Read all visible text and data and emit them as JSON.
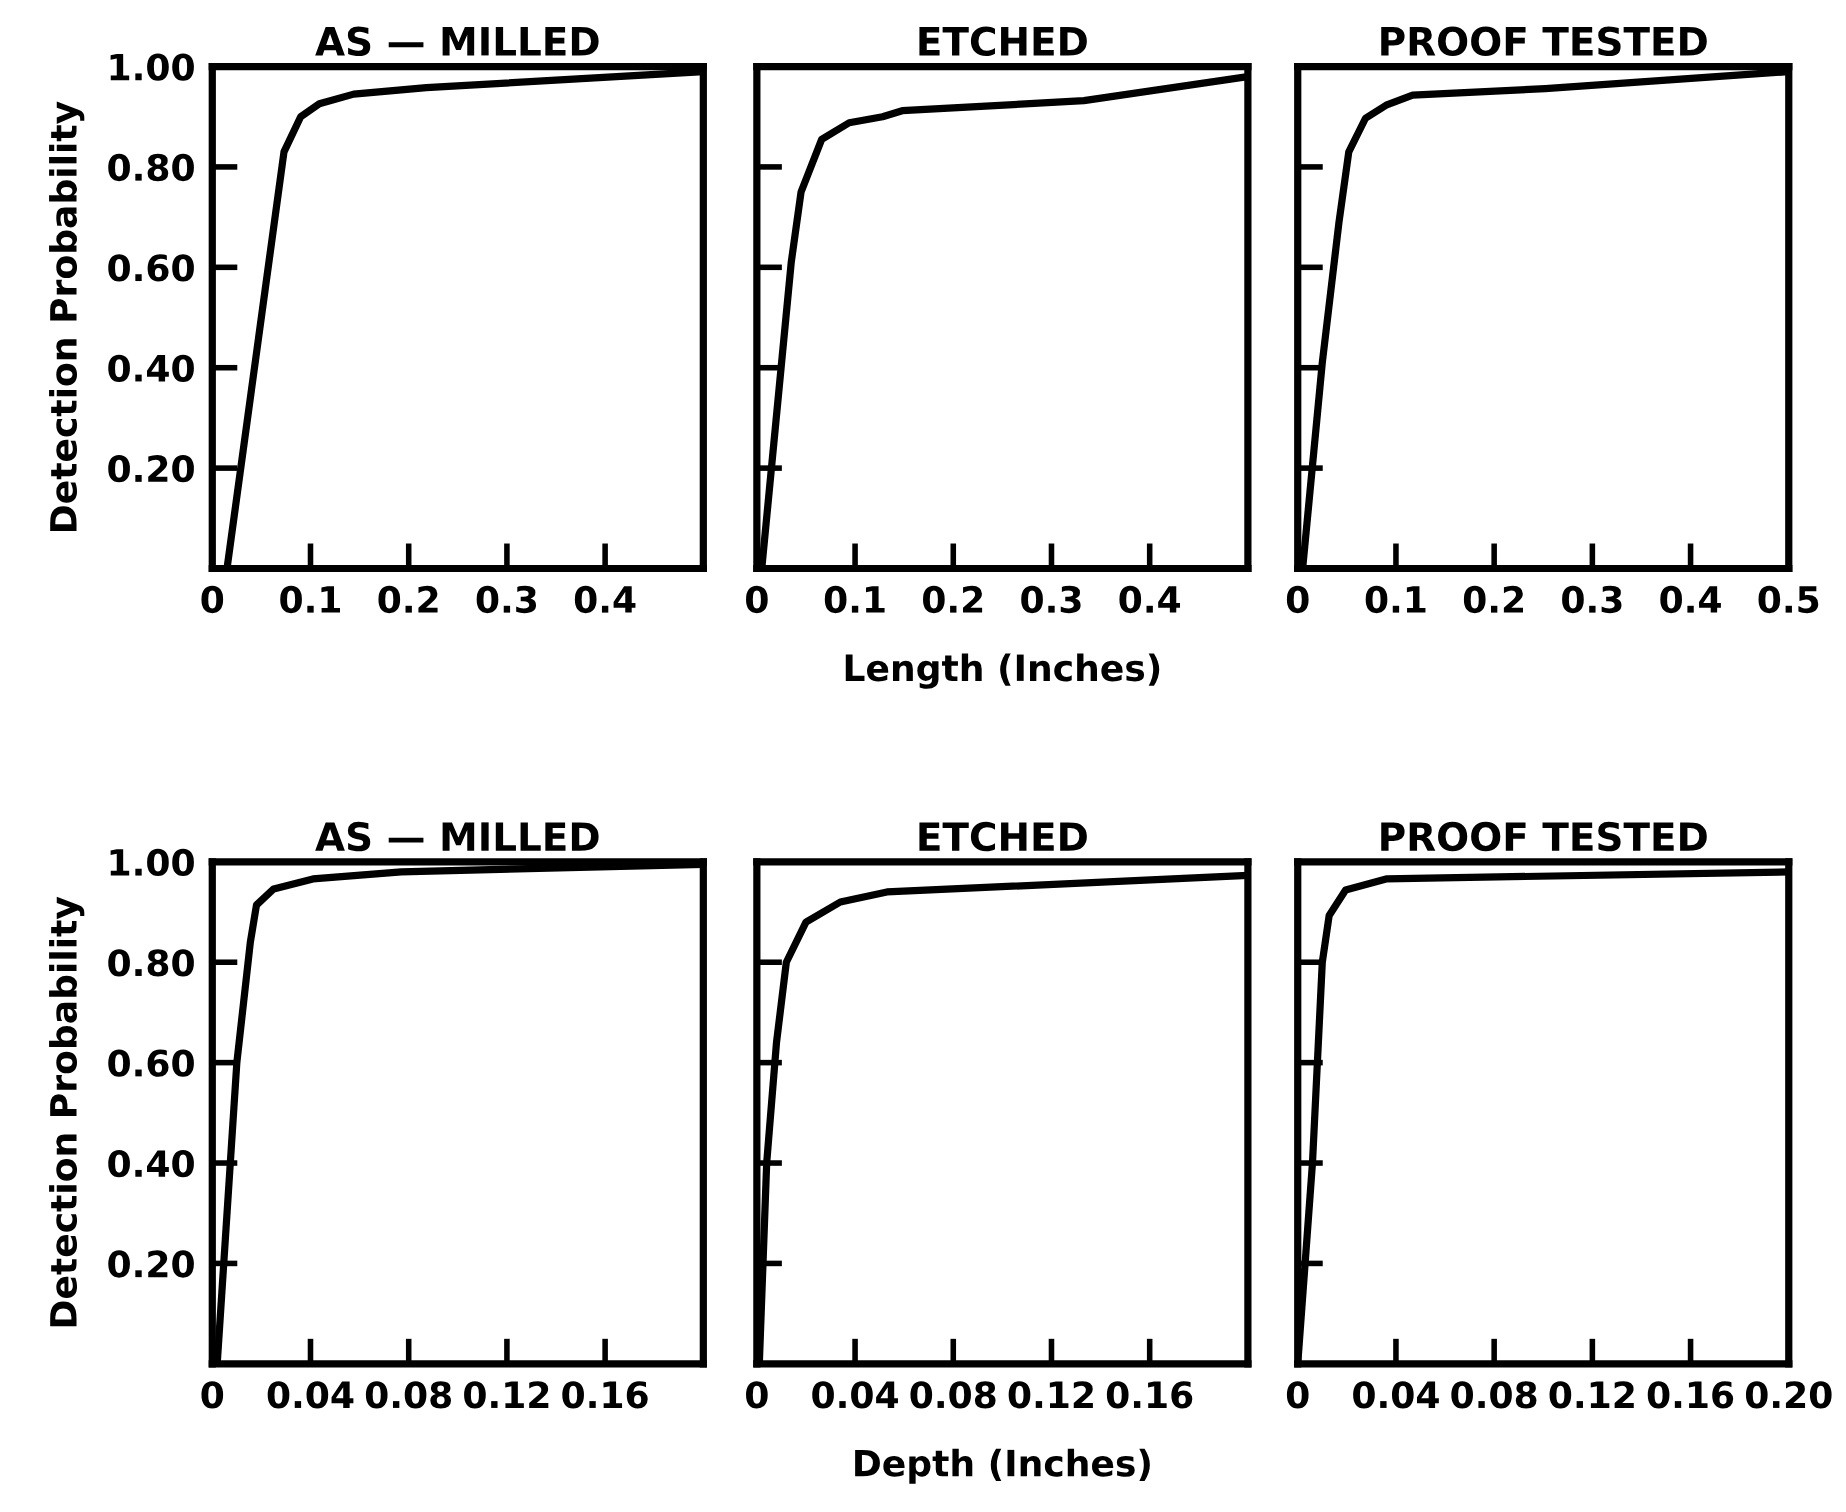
{
  "chart_data": [
    {
      "type": "line",
      "title": "AS — MILLED",
      "ylabel": "Detection Probability",
      "xlim": [
        0,
        0.5
      ],
      "ylim": [
        0,
        1
      ],
      "xticks": [
        0,
        0.1,
        0.2,
        0.3,
        0.4
      ],
      "yticks": [
        {
          "value": 0.2,
          "label": "0.20"
        },
        {
          "value": 0.4,
          "label": "0.40"
        },
        {
          "value": 0.6,
          "label": "0.60"
        },
        {
          "value": 0.8,
          "label": "0.80"
        },
        {
          "value": 1.0,
          "label": "1.00"
        }
      ],
      "grid": false,
      "legend": false,
      "series": [
        {
          "color": "#000000",
          "x": [
            0.015,
            0.073,
            0.09,
            0.109,
            0.144,
            0.218,
            0.5
          ],
          "values": [
            0,
            0.83,
            0.9,
            0.926,
            0.945,
            0.958,
            0.99
          ]
        }
      ]
    },
    {
      "type": "line",
      "title": "ETCHED",
      "xlabel": "Length (Inches)",
      "xlim": [
        0,
        0.5
      ],
      "ylim": [
        0,
        1
      ],
      "xticks": [
        0,
        0.1,
        0.2,
        0.3,
        0.4
      ],
      "yticks": [
        0.2,
        0.4,
        0.6,
        0.8,
        1.0
      ],
      "tick_labels": "x",
      "grid": false,
      "legend": false,
      "series": [
        {
          "color": "#000000",
          "x": [
            0.005,
            0.035,
            0.045,
            0.066,
            0.094,
            0.128,
            0.148,
            0.333,
            0.5
          ],
          "values": [
            0,
            0.61,
            0.75,
            0.855,
            0.888,
            0.9,
            0.912,
            0.932,
            0.98
          ]
        }
      ]
    },
    {
      "type": "line",
      "title": "PROOF TESTED",
      "xlim": [
        0,
        0.5
      ],
      "ylim": [
        0,
        1
      ],
      "xticks": [
        0,
        0.1,
        0.2,
        0.3,
        0.4,
        0.5
      ],
      "yticks": [
        0.2,
        0.4,
        0.6,
        0.8,
        1.0
      ],
      "tick_labels": "x",
      "grid": false,
      "legend": false,
      "series": [
        {
          "color": "#000000",
          "x": [
            0.005,
            0.025,
            0.042,
            0.052,
            0.069,
            0.09,
            0.117,
            0.252,
            0.5
          ],
          "values": [
            0,
            0.41,
            0.69,
            0.83,
            0.897,
            0.923,
            0.943,
            0.956,
            0.99
          ]
        }
      ]
    },
    {
      "type": "line",
      "title": "AS — MILLED",
      "ylabel": "Detection Probability",
      "xlim": [
        0,
        0.2
      ],
      "ylim": [
        0,
        1
      ],
      "xticks": [
        0,
        0.04,
        0.08,
        0.12,
        0.16
      ],
      "yticks": [
        {
          "value": 0.2,
          "label": "0.20"
        },
        {
          "value": 0.4,
          "label": "0.40"
        },
        {
          "value": 0.6,
          "label": "0.60"
        },
        {
          "value": 0.8,
          "label": "0.80"
        },
        {
          "value": 1.0,
          "label": "1.00"
        }
      ],
      "grid": false,
      "legend": false,
      "series": [
        {
          "color": "#000000",
          "x": [
            0.002,
            0.01,
            0.0155,
            0.018,
            0.025,
            0.041,
            0.077,
            0.2
          ],
          "values": [
            0,
            0.6,
            0.84,
            0.914,
            0.946,
            0.966,
            0.98,
            0.995
          ]
        }
      ]
    },
    {
      "type": "line",
      "title": "ETCHED",
      "xlabel": "Depth (Inches)",
      "xlim": [
        0,
        0.2
      ],
      "ylim": [
        0,
        1
      ],
      "xticks": [
        0,
        0.04,
        0.08,
        0.12,
        0.16
      ],
      "yticks": [
        0.2,
        0.4,
        0.6,
        0.8,
        1.0
      ],
      "tick_labels": "x",
      "grid": false,
      "legend": false,
      "series": [
        {
          "color": "#000000",
          "x": [
            0.001,
            0.004,
            0.008,
            0.012,
            0.02,
            0.034,
            0.053,
            0.2
          ],
          "values": [
            0,
            0.4,
            0.64,
            0.8,
            0.88,
            0.92,
            0.94,
            0.973
          ]
        }
      ]
    },
    {
      "type": "line",
      "title": "PROOF TESTED",
      "xlim": [
        0,
        0.2
      ],
      "ylim": [
        0,
        1
      ],
      "xticks": [
        0,
        0.04,
        0.08,
        0.12,
        0.16,
        {
          "value": 0.2,
          "label": "0.20"
        }
      ],
      "yticks": [
        0.2,
        0.4,
        0.6,
        0.8,
        1.0
      ],
      "tick_labels": "x",
      "grid": false,
      "legend": false,
      "series": [
        {
          "color": "#000000",
          "x": [
            0.0,
            0.006,
            0.01,
            0.0128,
            0.0195,
            0.036,
            0.2
          ],
          "values": [
            0,
            0.4,
            0.8,
            0.893,
            0.944,
            0.966,
            0.98
          ]
        }
      ]
    }
  ]
}
